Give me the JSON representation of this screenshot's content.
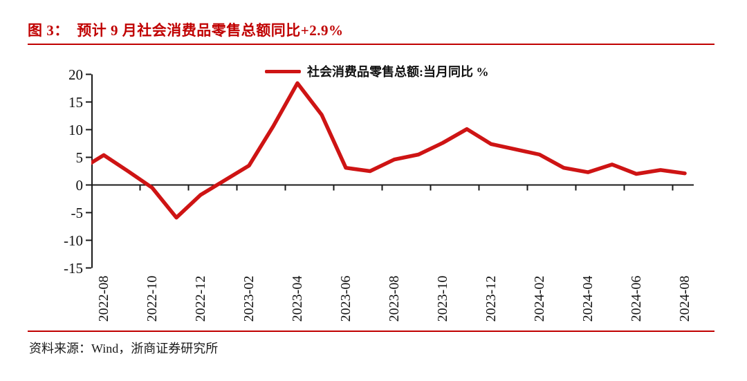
{
  "header": {
    "title": "图 3：  预计 9 月社会消费品零售总额同比+2.9%"
  },
  "footer": {
    "source": "资料来源：Wind，浙商证券研究所"
  },
  "colors": {
    "accent_red": "#C00000",
    "line_red": "#CE1414",
    "axis_black": "#1A1A1A"
  },
  "chart_data": {
    "type": "line",
    "legend": {
      "label": "社会消费品零售总额:当月同比 %",
      "position": "top-center",
      "color": "#CE1414"
    },
    "grid": false,
    "zero_line": true,
    "ylim": [
      -15,
      20
    ],
    "ytick_labels": [
      "20",
      "15",
      "10",
      "5",
      "0",
      "-5",
      "-10",
      "-15"
    ],
    "xtick_labels": [
      "2022-08",
      "2022-10",
      "2022-12",
      "2023-02",
      "2023-04",
      "2023-06",
      "2023-08",
      "2023-10",
      "2023-12",
      "2024-02",
      "2024-04",
      "2024-06",
      "2024-08"
    ],
    "x": [
      "2022-07",
      "2022-08",
      "2022-09",
      "2022-10",
      "2022-11",
      "2022-12",
      "2023-01",
      "2023-02",
      "2023-03",
      "2023-04",
      "2023-05",
      "2023-06",
      "2023-07",
      "2023-08",
      "2023-09",
      "2023-10",
      "2023-11",
      "2023-12",
      "2024-01",
      "2024-02",
      "2024-03",
      "2024-04",
      "2024-05",
      "2024-06",
      "2024-07",
      "2024-08"
    ],
    "series": [
      {
        "name": "社会消费品零售总额:当月同比 %",
        "color": "#CE1414",
        "values": [
          2.7,
          5.4,
          2.5,
          -0.5,
          -5.9,
          -1.8,
          null,
          3.5,
          10.6,
          18.4,
          12.7,
          3.1,
          2.5,
          4.6,
          5.5,
          7.6,
          10.1,
          7.4,
          null,
          5.5,
          3.1,
          2.3,
          3.7,
          2.0,
          2.7,
          2.1
        ]
      }
    ]
  }
}
